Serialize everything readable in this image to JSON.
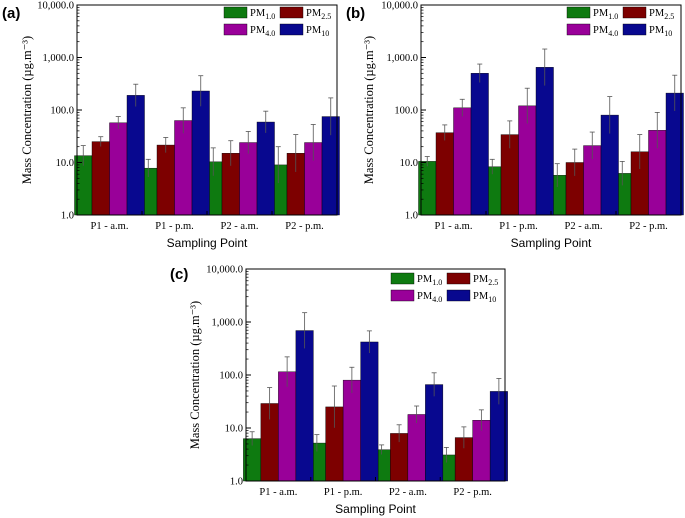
{
  "chart_data": [
    {
      "type": "bar",
      "panel_label": "(a)",
      "scale": "log",
      "ylim": [
        1,
        10000
      ],
      "ytick_labels": [
        "1.0",
        "10.0",
        "100.0",
        "1,000.0",
        "10,000.0"
      ],
      "ylabel": "Mass Concentration (µg.m⁻³)",
      "xlabel": "Sampling Point",
      "categories": [
        "P1 - a.m.",
        "P1 - p.m.",
        "P2 - a.m.",
        "P2 - p.m."
      ],
      "series": [
        {
          "name": "PM1.0",
          "base": "PM",
          "sub": "1.0",
          "color": "#0e7a10",
          "values": [
            13.5,
            7.8,
            10.3,
            9.0
          ],
          "errors": [
            21,
            11.5,
            19,
            20
          ]
        },
        {
          "name": "PM2.5",
          "base": "PM",
          "sub": "2.5",
          "color": "#7d0000",
          "values": [
            25,
            21.5,
            15,
            15
          ],
          "errors": [
            31,
            30,
            26,
            34
          ]
        },
        {
          "name": "PM4.0",
          "base": "PM",
          "sub": "4.0",
          "color": "#990099",
          "values": [
            57,
            63,
            24,
            24
          ],
          "errors": [
            75,
            110,
            39,
            53
          ]
        },
        {
          "name": "PM10",
          "base": "PM",
          "sub": "10",
          "color": "#08088f",
          "values": [
            190,
            230,
            59,
            75
          ],
          "errors": [
            310,
            450,
            95,
            170
          ]
        }
      ]
    },
    {
      "type": "bar",
      "panel_label": "(b)",
      "scale": "log",
      "ylim": [
        1,
        10000
      ],
      "ytick_labels": [
        "1.0",
        "10.0",
        "100.0",
        "1,000.0",
        "10,000.0"
      ],
      "ylabel": "Mass Concentration (µg.m⁻³)",
      "xlabel": "Sampling Point",
      "categories": [
        "P1 - a.m.",
        "P1 - p.m.",
        "P2 - a.m.",
        "P2 - p.m."
      ],
      "series": [
        {
          "name": "PM1.0",
          "base": "PM",
          "sub": "1.0",
          "color": "#0e7a10",
          "values": [
            10.5,
            8.3,
            5.7,
            6.2
          ],
          "errors": [
            13,
            11.5,
            9.5,
            10.5
          ]
        },
        {
          "name": "PM2.5",
          "base": "PM",
          "sub": "2.5",
          "color": "#7d0000",
          "values": [
            37,
            34,
            10,
            16
          ],
          "errors": [
            52,
            62,
            18,
            34
          ]
        },
        {
          "name": "PM4.0",
          "base": "PM",
          "sub": "4.0",
          "color": "#990099",
          "values": [
            110,
            120,
            21,
            41
          ],
          "errors": [
            160,
            260,
            38,
            90
          ]
        },
        {
          "name": "PM10",
          "base": "PM",
          "sub": "10",
          "color": "#08088f",
          "values": [
            500,
            650,
            80,
            210
          ],
          "errors": [
            750,
            1450,
            180,
            460
          ]
        }
      ]
    },
    {
      "type": "bar",
      "panel_label": "(c)",
      "scale": "log",
      "ylim": [
        1,
        10000
      ],
      "ytick_labels": [
        "1.0",
        "10.0",
        "100.0",
        "1,000.0",
        "10,000.0"
      ],
      "ylabel": "Mass Concentration (µg.m⁻³)",
      "xlabel": "Sampling Point",
      "categories": [
        "P1 - a.m.",
        "P1 - p.m.",
        "P2 - a.m.",
        "P2 - p.m."
      ],
      "series": [
        {
          "name": "PM1.0",
          "base": "PM",
          "sub": "1.0",
          "color": "#0e7a10",
          "values": [
            6.3,
            5.2,
            3.9,
            3.1
          ],
          "errors": [
            8.5,
            7.5,
            4.8,
            4.3
          ]
        },
        {
          "name": "PM2.5",
          "base": "PM",
          "sub": "2.5",
          "color": "#7d0000",
          "values": [
            29,
            25,
            7.9,
            6.6
          ],
          "errors": [
            58,
            62,
            11.5,
            10.5
          ]
        },
        {
          "name": "PM4.0",
          "base": "PM",
          "sub": "4.0",
          "color": "#990099",
          "values": [
            115,
            80,
            18,
            14
          ],
          "errors": [
            220,
            140,
            26,
            22
          ]
        },
        {
          "name": "PM10",
          "base": "PM",
          "sub": "10",
          "color": "#08088f",
          "values": [
            690,
            420,
            66,
            49
          ],
          "errors": [
            1500,
            680,
            110,
            86
          ]
        }
      ]
    }
  ]
}
